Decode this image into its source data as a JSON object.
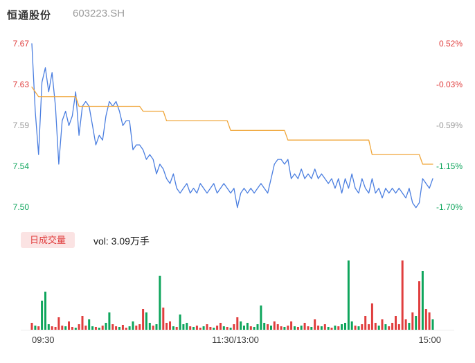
{
  "header": {
    "stock_name": "恒通股份",
    "stock_code": "603223.SH"
  },
  "colors": {
    "up": "#e03e3e",
    "down": "#0ea55c",
    "neutral": "#999999",
    "price_line": "#4a7ee0",
    "avg_line": "#f0a63a",
    "badge_bg": "#fbe3e3",
    "separator": "#ececec"
  },
  "volume_header": {
    "badge_label": "日成交量",
    "vol_text": "vol: 3.09万手"
  },
  "chart_data": {
    "type": "line",
    "title": "恒通股份 603223.SH",
    "prev_close": 7.63,
    "ylim": [
      7.5005,
      7.67
    ],
    "grid": false,
    "y_ticks_left": [
      {
        "label": "7.67",
        "color": "#e03e3e"
      },
      {
        "label": "7.63",
        "color": "#e03e3e"
      },
      {
        "label": "7.59",
        "color": "#999999"
      },
      {
        "label": "7.54",
        "color": "#0ea55c"
      },
      {
        "label": "7.50",
        "color": "#0ea55c"
      }
    ],
    "y_ticks_right": [
      {
        "label": "0.52%",
        "color": "#e03e3e"
      },
      {
        "label": "-0.03%",
        "color": "#e03e3e"
      },
      {
        "label": "-0.59%",
        "color": "#999999"
      },
      {
        "label": "-1.15%",
        "color": "#0ea55c"
      },
      {
        "label": "-1.70%",
        "color": "#0ea55c"
      }
    ],
    "x_ticks": [
      "09:30",
      "11:30/13:00",
      "15:00"
    ],
    "series": [
      {
        "name": "price",
        "color": "#4a7ee0",
        "values": [
          7.67,
          7.6,
          7.555,
          7.63,
          7.645,
          7.62,
          7.64,
          7.605,
          7.545,
          7.59,
          7.6,
          7.585,
          7.595,
          7.62,
          7.575,
          7.605,
          7.61,
          7.605,
          7.585,
          7.565,
          7.575,
          7.57,
          7.595,
          7.61,
          7.605,
          7.61,
          7.6,
          7.585,
          7.59,
          7.59,
          7.56,
          7.565,
          7.565,
          7.56,
          7.55,
          7.555,
          7.55,
          7.535,
          7.545,
          7.54,
          7.53,
          7.525,
          7.535,
          7.52,
          7.515,
          7.52,
          7.525,
          7.515,
          7.52,
          7.515,
          7.525,
          7.52,
          7.515,
          7.52,
          7.525,
          7.515,
          7.52,
          7.525,
          7.52,
          7.515,
          7.52,
          7.5,
          7.515,
          7.52,
          7.515,
          7.52,
          7.515,
          7.52,
          7.525,
          7.52,
          7.515,
          7.53,
          7.545,
          7.55,
          7.55,
          7.545,
          7.55,
          7.53,
          7.535,
          7.53,
          7.54,
          7.53,
          7.535,
          7.53,
          7.54,
          7.53,
          7.535,
          7.53,
          7.525,
          7.53,
          7.52,
          7.53,
          7.515,
          7.53,
          7.52,
          7.535,
          7.52,
          7.515,
          7.53,
          7.52,
          7.515,
          7.53,
          7.515,
          7.52,
          7.51,
          7.52,
          7.515,
          7.52,
          7.515,
          7.52,
          7.515,
          7.51,
          7.52,
          7.505,
          7.5,
          7.505,
          7.53,
          7.525,
          7.52,
          7.53
        ]
      },
      {
        "name": "avg",
        "color": "#f0a63a",
        "values": [
          7.625,
          7.62,
          7.615,
          7.615,
          7.615,
          7.615,
          7.615,
          7.615,
          7.615,
          7.615,
          7.615,
          7.615,
          7.615,
          7.615,
          7.605,
          7.605,
          7.605,
          7.605,
          7.605,
          7.605,
          7.605,
          7.605,
          7.605,
          7.605,
          7.605,
          7.605,
          7.605,
          7.605,
          7.605,
          7.605,
          7.605,
          7.605,
          7.605,
          7.6,
          7.6,
          7.6,
          7.6,
          7.6,
          7.6,
          7.6,
          7.59,
          7.59,
          7.59,
          7.59,
          7.59,
          7.59,
          7.59,
          7.59,
          7.59,
          7.59,
          7.59,
          7.59,
          7.59,
          7.59,
          7.59,
          7.59,
          7.59,
          7.59,
          7.59,
          7.58,
          7.58,
          7.58,
          7.58,
          7.58,
          7.58,
          7.58,
          7.58,
          7.58,
          7.58,
          7.58,
          7.58,
          7.58,
          7.58,
          7.58,
          7.58,
          7.58,
          7.57,
          7.57,
          7.57,
          7.57,
          7.57,
          7.57,
          7.57,
          7.57,
          7.57,
          7.57,
          7.57,
          7.57,
          7.57,
          7.57,
          7.57,
          7.57,
          7.57,
          7.57,
          7.57,
          7.57,
          7.57,
          7.57,
          7.57,
          7.57,
          7.57,
          7.555,
          7.555,
          7.555,
          7.555,
          7.555,
          7.555,
          7.555,
          7.555,
          7.555,
          7.555,
          7.555,
          7.555,
          7.555,
          7.555,
          7.555,
          7.545,
          7.545,
          7.545,
          7.545
        ]
      }
    ],
    "volume": {
      "unit": "relative",
      "heights": [
        10,
        6,
        5,
        42,
        55,
        8,
        5,
        4,
        18,
        6,
        5,
        12,
        4,
        3,
        8,
        20,
        6,
        15,
        5,
        4,
        3,
        6,
        10,
        25,
        8,
        5,
        4,
        7,
        3,
        5,
        12,
        6,
        8,
        30,
        25,
        10,
        6,
        8,
        78,
        32,
        10,
        12,
        5,
        4,
        22,
        8,
        10,
        5,
        4,
        6,
        3,
        5,
        8,
        4,
        3,
        6,
        10,
        5,
        4,
        3,
        8,
        18,
        12,
        6,
        10,
        5,
        4,
        8,
        35,
        10,
        8,
        6,
        12,
        8,
        5,
        4,
        6,
        12,
        5,
        4,
        6,
        10,
        5,
        4,
        15,
        6,
        5,
        8,
        4,
        3,
        6,
        5,
        8,
        10,
        100,
        12,
        6,
        5,
        8,
        20,
        8,
        38,
        10,
        6,
        15,
        8,
        5,
        10,
        20,
        8,
        100,
        15,
        10,
        25,
        20,
        70,
        85,
        30,
        25,
        15
      ],
      "directions": [
        "rgrgggrrrr",
        "grrgrrrggr",
        "grggrrgrrg",
        "grrrggrggr",
        "rrgrgggrgr",
        "rgrrgrrgrg",
        "rrgggrgggg",
        "rgrrrgrrgr",
        "grrgrrgrgr",
        "grggggrgrr",
        "rrrgrgrrrr",
        "rrgrgrgrrg"
      ]
    }
  }
}
